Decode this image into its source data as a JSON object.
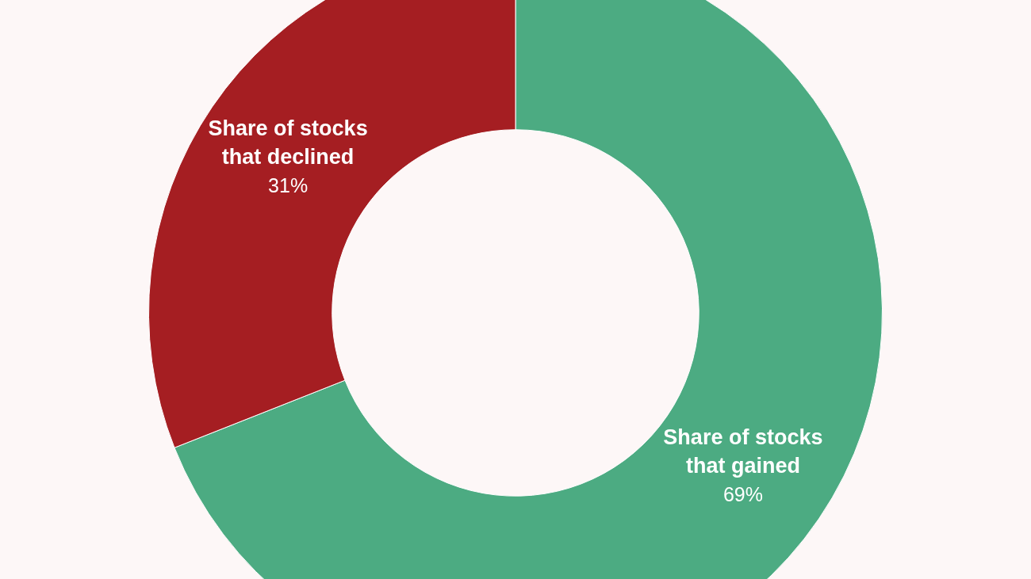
{
  "chart_data": {
    "type": "donut",
    "categories": [
      "Share of stocks that gained",
      "Share of stocks that declined"
    ],
    "values": [
      69,
      31
    ],
    "colors": [
      "#4cab82",
      "#a51e22"
    ],
    "value_labels": [
      "69%",
      "31%"
    ],
    "legend": false
  }
}
